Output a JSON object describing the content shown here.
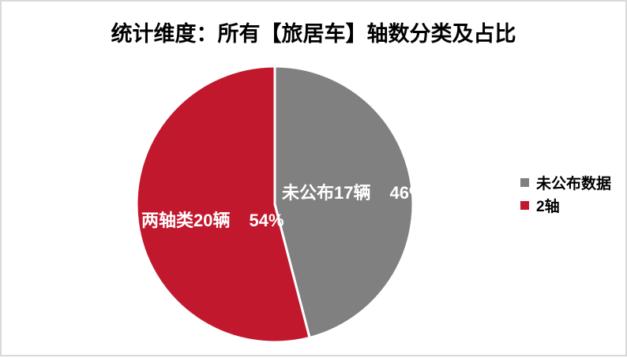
{
  "frame": {
    "background": "#FFFFFF",
    "border_color": "#D9D9D9"
  },
  "chart_data": {
    "type": "pie",
    "title": "统计维度：所有【旅居车】轴数分类及占比",
    "title_color": "#000000",
    "legend_position": "right",
    "direction": "clockwise",
    "start_angle_from_top_deg": 0,
    "separator_color": "#FFFFFF",
    "slices": [
      {
        "legend_label": "未公布数据",
        "slice_label": "未公布17辆",
        "value": 17,
        "percent": 46,
        "percent_label": "46%",
        "color": "#808080",
        "label_color": "#FFFFFF"
      },
      {
        "legend_label": "2轴",
        "slice_label": "两轴类20辆",
        "value": 20,
        "percent": 54,
        "percent_label": "54%",
        "color": "#C2182E",
        "label_color": "#FFFFFF"
      }
    ]
  }
}
